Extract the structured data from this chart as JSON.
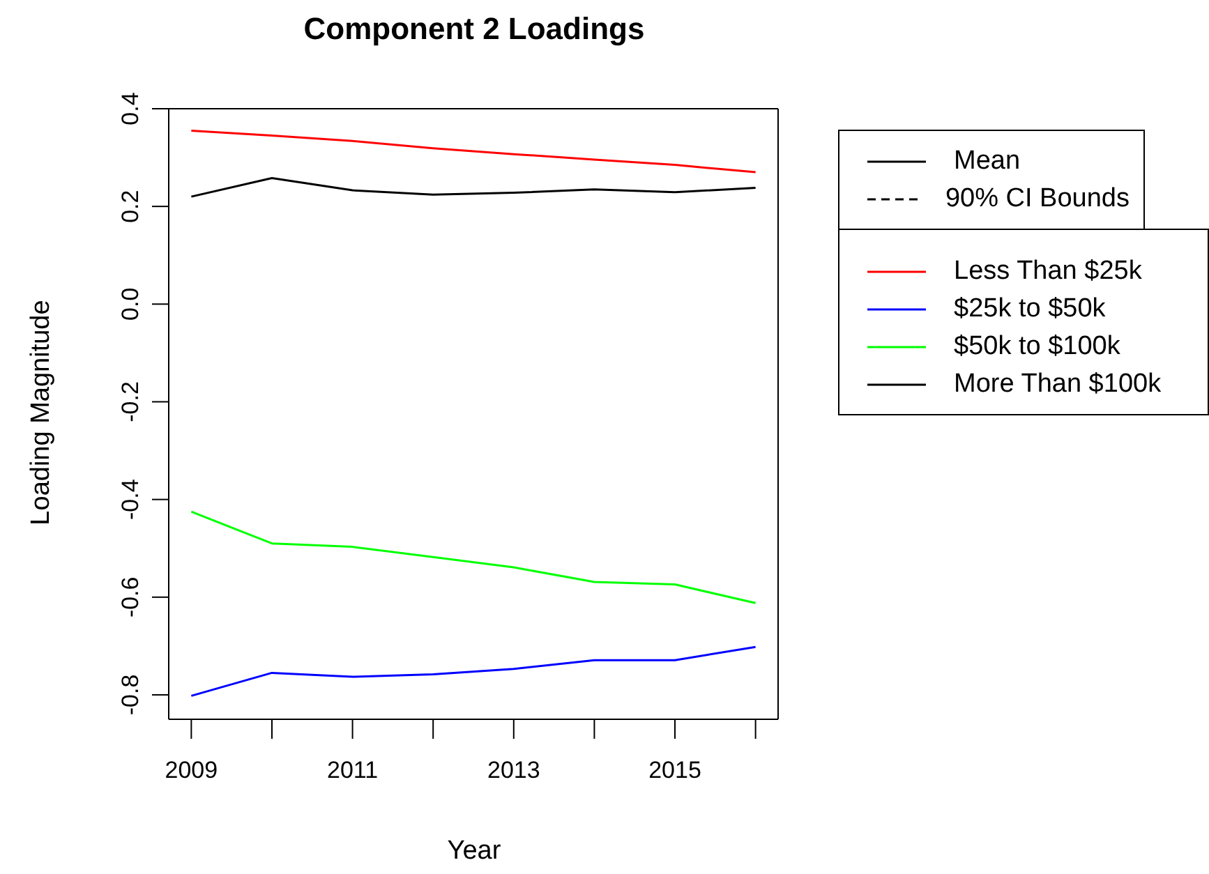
{
  "chart_data": {
    "type": "line",
    "title": "Component 2 Loadings",
    "xlabel": "Year",
    "ylabel": "Loading Magnitude",
    "x": [
      2009,
      2010,
      2011,
      2012,
      2013,
      2014,
      2015,
      2016
    ],
    "xlim": [
      2008.72,
      2016.28
    ],
    "xticks": [
      2009,
      {
        "value": 2010,
        "label": null
      },
      2011,
      {
        "value": 2012,
        "label": null
      },
      2013,
      {
        "value": 2014,
        "label": null
      },
      2015,
      {
        "value": 2016,
        "label": null
      }
    ],
    "ylim": [
      -0.85,
      0.4
    ],
    "yticks": [
      {
        "value": -0.8,
        "label": "-0.8"
      },
      {
        "value": -0.6,
        "label": "-0.6"
      },
      {
        "value": -0.4,
        "label": "-0.4"
      },
      {
        "value": -0.2,
        "label": "-0.2"
      },
      {
        "value": 0,
        "label": "0.0"
      },
      {
        "value": 0.2,
        "label": "0.2"
      },
      {
        "value": 0.4,
        "label": "0.4"
      }
    ],
    "grid": false,
    "legend": "right",
    "marker": "none",
    "series": [
      {
        "name": "Mean",
        "color": "#000000",
        "line_style": "solid",
        "values": [
          null,
          null,
          null,
          null,
          null,
          null,
          null,
          null
        ]
      },
      {
        "name": "90% CI Bounds",
        "color": "#000000",
        "line_style": "dashed",
        "values": [
          null,
          null,
          null,
          null,
          null,
          null,
          null,
          null
        ]
      },
      {
        "name": "Less Than $25k",
        "color": "#ff0000",
        "values": [
          0.355,
          0.345,
          0.334,
          0.319,
          0.307,
          0.296,
          0.285,
          0.27
        ]
      },
      {
        "name": "$25k to $50k",
        "color": "#0000ff",
        "values": [
          -0.802,
          -0.755,
          -0.763,
          -0.758,
          -0.747,
          -0.729,
          -0.729,
          -0.702
        ]
      },
      {
        "name": "$50k to $100k",
        "color": "#00ff00",
        "values": [
          -0.425,
          -0.49,
          -0.497,
          -0.518,
          -0.539,
          -0.569,
          -0.574,
          -0.612
        ]
      },
      {
        "name": "More Than $100k",
        "color": "#000000",
        "values": [
          0.22,
          0.258,
          0.233,
          0.224,
          0.228,
          0.235,
          0.229,
          0.238
        ]
      }
    ]
  }
}
